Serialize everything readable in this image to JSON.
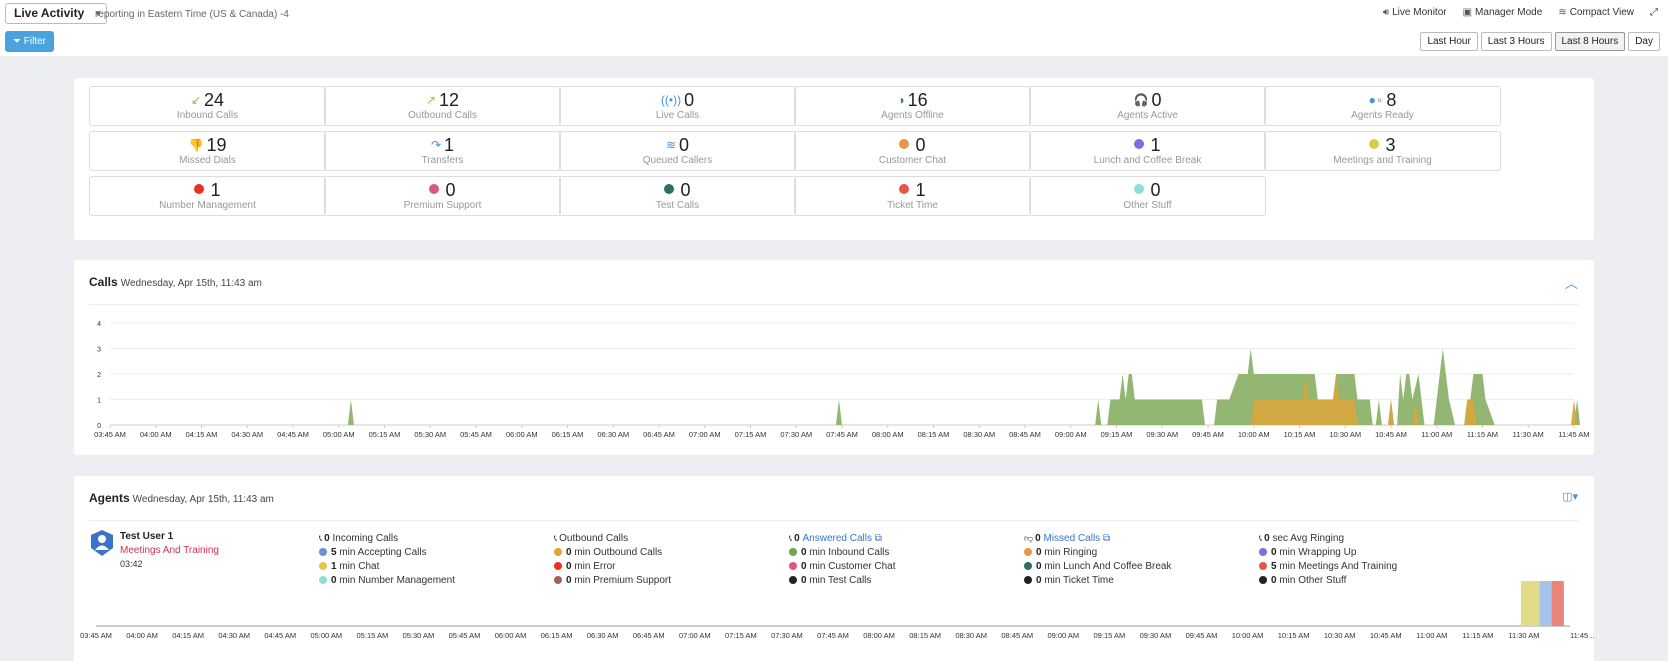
{
  "header": {
    "title": "Live Activity",
    "subtitle": "reporting in Eastern Time (US & Canada) -4",
    "live_monitor": "Live Monitor",
    "manager_mode": "Manager Mode",
    "compact_view": "Compact View"
  },
  "toolbar": {
    "filter": "Filter",
    "ranges": [
      "Last Hour",
      "Last 3 Hours",
      "Last 8 Hours",
      "Day"
    ],
    "active_range": "Last 8 Hours"
  },
  "stats": [
    {
      "value": "24",
      "label": "Inbound Calls",
      "icon": "inbound-call-icon",
      "symbol": "↙",
      "color": "#8cbf3f"
    },
    {
      "value": "12",
      "label": "Outbound Calls",
      "icon": "outbound-call-icon",
      "symbol": "↗",
      "color": "#e7a43a"
    },
    {
      "value": "0",
      "label": "Live Calls",
      "icon": "broadcast-icon",
      "symbol": "((•))",
      "color": "#4a90d9"
    },
    {
      "value": "16",
      "label": "Agents Offline",
      "icon": "half-circle-icon",
      "symbol": "◑",
      "color": "#3b73c8"
    },
    {
      "value": "0",
      "label": "Agents Active",
      "icon": "headset-icon",
      "symbol": "🎧",
      "color": "#4a90d9"
    },
    {
      "value": "8",
      "label": "Agents Ready",
      "icon": "ready-dots-icon",
      "symbol": "●∘",
      "color": "#4a90d9"
    },
    {
      "value": "19",
      "label": "Missed Dials",
      "icon": "thumbs-down-icon",
      "symbol": "👎",
      "color": "#4a90d9"
    },
    {
      "value": "1",
      "label": "Transfers",
      "icon": "transfer-arrow-icon",
      "symbol": "↷",
      "color": "#4a90d9"
    },
    {
      "value": "0",
      "label": "Queued Callers",
      "icon": "layers-icon",
      "symbol": "≋",
      "color": "#4a90d9"
    },
    {
      "value": "0",
      "label": "Customer Chat",
      "dot": "#e8964a"
    },
    {
      "value": "1",
      "label": "Lunch and Coffee Break",
      "dot": "#7b6fe0"
    },
    {
      "value": "3",
      "label": "Meetings and Training",
      "dot": "#e0c94a"
    },
    {
      "value": "1",
      "label": "Number Management",
      "dot": "#e8321f"
    },
    {
      "value": "0",
      "label": "Premium Support",
      "dot": "#e0557a"
    },
    {
      "value": "0",
      "label": "Test Calls",
      "dot": "#2f6e66"
    },
    {
      "value": "1",
      "label": "Ticket Time",
      "dot": "#e2574a"
    },
    {
      "value": "0",
      "label": "Other Stuff",
      "dot": "#8ee0d6"
    }
  ],
  "calls_panel": {
    "title": "Calls",
    "date": "Wednesday, Apr 15th, 11:43 am"
  },
  "agents_panel": {
    "title": "Agents",
    "date": "Wednesday, Apr 15th, 11:43 am",
    "agent": {
      "name": "Test User 1",
      "status": "Meetings And Training",
      "time": "03:42"
    },
    "columns": [
      [
        {
          "head": true,
          "value": "0",
          "text": "Incoming Calls",
          "icon": "phone-incoming-icon"
        },
        {
          "value": "5",
          "text": "min Accepting Calls",
          "dot": "#6b8fd6"
        },
        {
          "value": "1",
          "text": "min Chat",
          "dot": "#e0c94a"
        },
        {
          "value": "0",
          "text": "min Number Management",
          "dot": "#8ee0d6"
        }
      ],
      [
        {
          "head": true,
          "value": "",
          "text": "Outbound Calls",
          "icon": "phone-outgoing-icon"
        },
        {
          "value": "0",
          "text": "min Outbound Calls",
          "dot": "#e0a43a"
        },
        {
          "value": "0",
          "text": "min Error",
          "dot": "#e8321f"
        },
        {
          "value": "0",
          "text": "min Premium Support",
          "dot": "#a0645a"
        }
      ],
      [
        {
          "head": true,
          "value": "0",
          "text": "Answered Calls",
          "link": true,
          "icon": "phone-icon"
        },
        {
          "value": "0",
          "text": "min Inbound Calls",
          "dot": "#6aa84f"
        },
        {
          "value": "0",
          "text": "min Customer Chat",
          "dot": "#e0557a"
        },
        {
          "value": "0",
          "text": "min Test Calls",
          "dot": "#222222"
        }
      ],
      [
        {
          "head": true,
          "value": "0",
          "text": "Missed Calls",
          "link": true,
          "icon": "thumbs-down-icon"
        },
        {
          "value": "0",
          "text": "min Ringing",
          "dot": "#e8964a"
        },
        {
          "value": "0",
          "text": "min Lunch And Coffee Break",
          "dot": "#2f6e66"
        },
        {
          "value": "0",
          "text": "min Ticket Time",
          "dot": "#222222"
        }
      ],
      [
        {
          "head": true,
          "value": "0",
          "text": "sec Avg Ringing",
          "icon": "phone-ringing-icon"
        },
        {
          "value": "0",
          "text": "min Wrapping Up",
          "dot": "#7b6fe0"
        },
        {
          "value": "5",
          "text": "min Meetings And Training",
          "dot": "#e2574a"
        },
        {
          "value": "0",
          "text": "min Other Stuff",
          "dot": "#222222"
        }
      ]
    ]
  },
  "chart_data": [
    {
      "type": "area",
      "title": "Calls",
      "ylim": [
        0,
        4
      ],
      "yticks": [
        0,
        1,
        2,
        3,
        4
      ],
      "x_labels": [
        "03:45 AM",
        "04:00 AM",
        "04:15 AM",
        "04:30 AM",
        "04:45 AM",
        "05:00 AM",
        "05:15 AM",
        "05:30 AM",
        "05:45 AM",
        "06:00 AM",
        "06:15 AM",
        "06:30 AM",
        "06:45 AM",
        "07:00 AM",
        "07:15 AM",
        "07:30 AM",
        "07:45 AM",
        "08:00 AM",
        "08:15 AM",
        "08:30 AM",
        "08:45 AM",
        "09:00 AM",
        "09:15 AM",
        "09:30 AM",
        "09:45 AM",
        "10:00 AM",
        "10:15 AM",
        "10:30 AM",
        "10:45 AM",
        "11:00 AM",
        "11:15 AM",
        "11:30 AM",
        "11:45 AM"
      ],
      "series": [
        {
          "color": "#8db36b",
          "points": [
            [
              "05:03 AM",
              0
            ],
            [
              "05:04 AM",
              1
            ],
            [
              "05:05 AM",
              0
            ],
            [
              "07:43 AM",
              0
            ],
            [
              "07:44 AM",
              1
            ],
            [
              "07:45 AM",
              0
            ],
            [
              "09:08 AM",
              0
            ],
            [
              "09:09 AM",
              1
            ],
            [
              "09:10 AM",
              0
            ],
            [
              "09:12 AM",
              0
            ],
            [
              "09:13 AM",
              1
            ],
            [
              "09:16 AM",
              1
            ],
            [
              "09:17 AM",
              2
            ],
            [
              "09:18 AM",
              1
            ],
            [
              "09:19 AM",
              2
            ],
            [
              "09:20 AM",
              2
            ],
            [
              "09:21 AM",
              1
            ],
            [
              "09:43 AM",
              1
            ],
            [
              "09:44 AM",
              0
            ],
            [
              "09:47 AM",
              0
            ],
            [
              "09:48 AM",
              1
            ],
            [
              "09:52 AM",
              1
            ],
            [
              "09:55 AM",
              2
            ],
            [
              "09:58 AM",
              2
            ],
            [
              "09:59 AM",
              3
            ],
            [
              "10:00 AM",
              2
            ],
            [
              "10:20 AM",
              2
            ],
            [
              "10:21 AM",
              1
            ],
            [
              "10:26 AM",
              1
            ],
            [
              "10:27 AM",
              2
            ],
            [
              "10:33 AM",
              2
            ],
            [
              "10:34 AM",
              1
            ],
            [
              "10:38 AM",
              1
            ],
            [
              "10:39 AM",
              0
            ],
            [
              "10:40 AM",
              0
            ],
            [
              "10:41 AM",
              1
            ],
            [
              "10:42 AM",
              0
            ],
            [
              "10:44 AM",
              0
            ],
            [
              "10:45 AM",
              1
            ],
            [
              "10:46 AM",
              0
            ],
            [
              "10:47 AM",
              0
            ],
            [
              "10:48 AM",
              2
            ],
            [
              "10:49 AM",
              1
            ],
            [
              "10:50 AM",
              2
            ],
            [
              "10:51 AM",
              2
            ],
            [
              "10:52 AM",
              1
            ],
            [
              "10:54 AM",
              2
            ],
            [
              "10:56 AM",
              0
            ],
            [
              "10:59 AM",
              0
            ],
            [
              "11:02 AM",
              3
            ],
            [
              "11:04 AM",
              1
            ],
            [
              "11:06 AM",
              0
            ],
            [
              "11:09 AM",
              0
            ],
            [
              "11:10 AM",
              1
            ],
            [
              "11:11 AM",
              1
            ],
            [
              "11:12 AM",
              2
            ],
            [
              "11:15 AM",
              2
            ],
            [
              "11:16 AM",
              1
            ],
            [
              "11:19 AM",
              0
            ],
            [
              "11:45 AM",
              0
            ],
            [
              "11:46 AM",
              1
            ],
            [
              "11:47 AM",
              0
            ]
          ]
        },
        {
          "color": "#d4a63e",
          "points": [
            [
              "09:59 AM",
              0
            ],
            [
              "10:00 AM",
              1
            ],
            [
              "10:16 AM",
              1
            ],
            [
              "10:17 AM",
              2
            ],
            [
              "10:18 AM",
              1
            ],
            [
              "10:26 AM",
              1
            ],
            [
              "10:27 AM",
              2
            ],
            [
              "10:28 AM",
              1
            ],
            [
              "10:33 AM",
              1
            ],
            [
              "10:34 AM",
              0
            ],
            [
              "10:44 AM",
              0
            ],
            [
              "10:45 AM",
              1
            ],
            [
              "10:46 AM",
              0
            ],
            [
              "10:52 AM",
              0
            ],
            [
              "10:53 AM",
              1
            ],
            [
              "10:54 AM",
              0
            ],
            [
              "11:09 AM",
              0
            ],
            [
              "11:10 AM",
              1
            ],
            [
              "11:12 AM",
              1
            ],
            [
              "11:13 AM",
              0
            ],
            [
              "11:44 AM",
              0
            ],
            [
              "11:45 AM",
              1
            ],
            [
              "11:46 AM",
              0
            ]
          ]
        }
      ]
    },
    {
      "type": "bar",
      "x_labels": [
        "03:45 AM",
        "04:00 AM",
        "04:15 AM",
        "04:30 AM",
        "04:45 AM",
        "05:00 AM",
        "05:15 AM",
        "05:30 AM",
        "05:45 AM",
        "06:00 AM",
        "06:15 AM",
        "06:30 AM",
        "06:45 AM",
        "07:00 AM",
        "07:15 AM",
        "07:30 AM",
        "07:45 AM",
        "08:00 AM",
        "08:15 AM",
        "08:30 AM",
        "08:45 AM",
        "09:00 AM",
        "09:15 AM",
        "09:30 AM",
        "09:45 AM",
        "10:00 AM",
        "10:15 AM",
        "10:30 AM",
        "10:45 AM",
        "11:00 AM",
        "11:15 AM",
        "11:30 AM",
        "11:45 ..."
      ],
      "bars": [
        {
          "start": "11:29 AM",
          "end": "11:35 AM",
          "color": "#e2dc8a"
        },
        {
          "start": "11:35 AM",
          "end": "11:39 AM",
          "color": "#a6c3ec"
        },
        {
          "start": "11:39 AM",
          "end": "11:43 AM",
          "color": "#e8857a"
        }
      ]
    }
  ]
}
